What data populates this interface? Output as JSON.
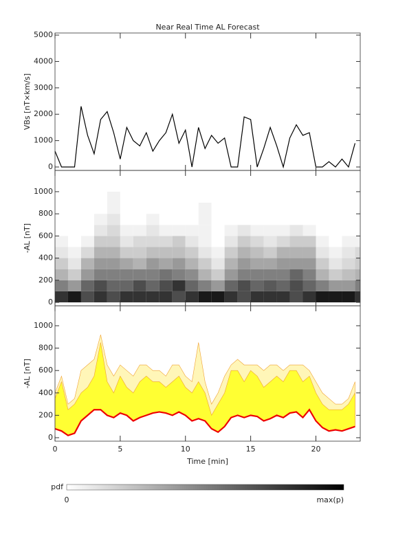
{
  "chart_data": [
    {
      "type": "line",
      "title": "Near Real Time AL Forecast",
      "ylabel": "VBs [nT×km/s]",
      "x": [
        0,
        0.5,
        1,
        1.5,
        2,
        2.5,
        3,
        3.5,
        4,
        4.5,
        5,
        5.5,
        6,
        6.5,
        7,
        7.5,
        8,
        8.5,
        9,
        9.5,
        10,
        10.5,
        11,
        11.5,
        12,
        12.5,
        13,
        13.5,
        14,
        14.5,
        15,
        15.5,
        16,
        16.5,
        17,
        17.5,
        18,
        18.5,
        19,
        19.5,
        20,
        20.5,
        21,
        21.5,
        22,
        22.5,
        23
      ],
      "series": [
        {
          "color": "#000000",
          "values": [
            600,
            0,
            0,
            0,
            2300,
            1200,
            500,
            1800,
            2100,
            1300,
            300,
            1500,
            1000,
            800,
            1300,
            600,
            1000,
            1300,
            2000,
            900,
            1400,
            0,
            1500,
            700,
            1200,
            900,
            1100,
            0,
            0,
            1900,
            1800,
            0,
            700,
            1500,
            800,
            0,
            1100,
            1600,
            1200,
            1300,
            0,
            0,
            200,
            0,
            300,
            0,
            900
          ]
        }
      ],
      "xlim": [
        0,
        23.4
      ],
      "xticks": [
        0,
        5,
        10,
        15,
        20
      ],
      "ylim": [
        -130,
        5080
      ],
      "yticks": [
        0,
        1000,
        2000,
        3000,
        4000,
        5000
      ]
    },
    {
      "type": "heatmap",
      "ylabel": "-AL [nT]",
      "x_bins": [
        0,
        1,
        2,
        3,
        4,
        5,
        6,
        7,
        8,
        9,
        10,
        11,
        12,
        13,
        14,
        15,
        16,
        17,
        18,
        19,
        20,
        21,
        22,
        23,
        24
      ],
      "y_bins": [
        0,
        100,
        200,
        300,
        400,
        500,
        600,
        700,
        800,
        900,
        1000
      ],
      "pdf": [
        [
          0.8,
          0.5,
          0.3,
          0.2,
          0.1,
          0.05,
          0,
          0,
          0,
          0
        ],
        [
          0.9,
          0.4,
          0.2,
          0.1,
          0.05,
          0,
          0,
          0,
          0,
          0
        ],
        [
          0.7,
          0.6,
          0.4,
          0.3,
          0.15,
          0.05,
          0,
          0,
          0,
          0
        ],
        [
          0.8,
          0.7,
          0.5,
          0.4,
          0.3,
          0.2,
          0.1,
          0.05,
          0,
          0
        ],
        [
          0.7,
          0.6,
          0.5,
          0.4,
          0.3,
          0.2,
          0.15,
          0.1,
          0.05,
          0.05
        ],
        [
          0.8,
          0.6,
          0.5,
          0.35,
          0.2,
          0.1,
          0.05,
          0,
          0,
          0
        ],
        [
          0.8,
          0.7,
          0.5,
          0.3,
          0.2,
          0.15,
          0.05,
          0,
          0,
          0
        ],
        [
          0.8,
          0.6,
          0.5,
          0.4,
          0.25,
          0.15,
          0.1,
          0.05,
          0,
          0
        ],
        [
          0.8,
          0.7,
          0.55,
          0.35,
          0.25,
          0.15,
          0.05,
          0,
          0,
          0
        ],
        [
          0.7,
          0.8,
          0.5,
          0.4,
          0.25,
          0.2,
          0.05,
          0,
          0,
          0
        ],
        [
          0.8,
          0.6,
          0.45,
          0.3,
          0.2,
          0.1,
          0.05,
          0,
          0,
          0
        ],
        [
          0.9,
          0.5,
          0.3,
          0.2,
          0.1,
          0.05,
          0.05,
          0.05,
          0.05,
          0
        ],
        [
          0.9,
          0.4,
          0.2,
          0.1,
          0.05,
          0,
          0,
          0,
          0,
          0
        ],
        [
          0.8,
          0.6,
          0.4,
          0.3,
          0.2,
          0.1,
          0.05,
          0,
          0,
          0
        ],
        [
          0.7,
          0.7,
          0.5,
          0.4,
          0.3,
          0.2,
          0.1,
          0,
          0,
          0
        ],
        [
          0.8,
          0.6,
          0.5,
          0.35,
          0.25,
          0.15,
          0.05,
          0,
          0,
          0
        ],
        [
          0.8,
          0.65,
          0.5,
          0.35,
          0.2,
          0.1,
          0.05,
          0,
          0,
          0
        ],
        [
          0.8,
          0.6,
          0.5,
          0.4,
          0.3,
          0.15,
          0.05,
          0,
          0,
          0
        ],
        [
          0.7,
          0.7,
          0.6,
          0.4,
          0.3,
          0.2,
          0.1,
          0,
          0,
          0
        ],
        [
          0.8,
          0.6,
          0.5,
          0.4,
          0.3,
          0.2,
          0.05,
          0,
          0,
          0
        ],
        [
          0.9,
          0.5,
          0.3,
          0.2,
          0.1,
          0.05,
          0,
          0,
          0,
          0
        ],
        [
          0.9,
          0.4,
          0.2,
          0.1,
          0.05,
          0,
          0,
          0,
          0,
          0
        ],
        [
          0.9,
          0.4,
          0.25,
          0.15,
          0.1,
          0.05,
          0,
          0,
          0,
          0
        ],
        [
          0.8,
          0.5,
          0.3,
          0.2,
          0.15,
          0.05,
          0,
          0,
          0,
          0
        ]
      ],
      "xlim": [
        0,
        23.4
      ],
      "xticks": [
        0,
        5,
        10,
        15,
        20
      ],
      "ylim": [
        -31,
        1192
      ],
      "yticks": [
        0,
        200,
        400,
        600,
        800,
        1000
      ]
    },
    {
      "type": "band",
      "ylabel": "-AL [nT]",
      "xlabel": "Time [min]",
      "x": [
        0,
        0.5,
        1,
        1.5,
        2,
        2.5,
        3,
        3.5,
        4,
        4.5,
        5,
        5.5,
        6,
        6.5,
        7,
        7.5,
        8,
        8.5,
        9,
        9.5,
        10,
        10.5,
        11,
        11.5,
        12,
        12.5,
        13,
        13.5,
        14,
        14.5,
        15,
        15.5,
        16,
        16.5,
        17,
        17.5,
        18,
        18.5,
        19,
        19.5,
        20,
        20.5,
        21,
        21.5,
        22,
        22.5,
        23
      ],
      "series": [
        {
          "color": "#ee0000",
          "values": [
            80,
            60,
            20,
            40,
            150,
            200,
            250,
            250,
            200,
            180,
            220,
            200,
            150,
            180,
            200,
            220,
            230,
            220,
            200,
            230,
            200,
            150,
            170,
            150,
            80,
            50,
            100,
            180,
            200,
            180,
            200,
            190,
            150,
            170,
            200,
            180,
            220,
            230,
            180,
            250,
            150,
            90,
            60,
            70,
            60,
            80,
            100
          ]
        },
        {
          "color": "#ffff33",
          "values": [
            350,
            500,
            250,
            300,
            400,
            450,
            550,
            850,
            500,
            400,
            550,
            450,
            400,
            500,
            550,
            500,
            500,
            450,
            500,
            550,
            450,
            400,
            500,
            400,
            200,
            300,
            400,
            600,
            600,
            500,
            600,
            550,
            450,
            500,
            550,
            500,
            600,
            600,
            500,
            550,
            400,
            300,
            250,
            250,
            250,
            300,
            400
          ]
        },
        {
          "color": "#fff6b8",
          "values": [
            400,
            550,
            300,
            350,
            600,
            650,
            700,
            920,
            650,
            550,
            650,
            600,
            550,
            650,
            650,
            600,
            600,
            550,
            650,
            650,
            550,
            500,
            850,
            500,
            300,
            400,
            550,
            650,
            700,
            650,
            650,
            650,
            600,
            650,
            650,
            600,
            650,
            650,
            650,
            600,
            500,
            400,
            350,
            300,
            300,
            350,
            500
          ]
        }
      ],
      "xlim": [
        0,
        23.4
      ],
      "xticks": [
        0,
        5,
        10,
        15,
        20
      ],
      "ylim": [
        -31,
        1178
      ],
      "yticks": [
        0,
        200,
        400,
        600,
        800,
        1000
      ]
    }
  ],
  "colorbar": {
    "label": "pdf",
    "min_label": "0",
    "max_label": "max(p)"
  }
}
